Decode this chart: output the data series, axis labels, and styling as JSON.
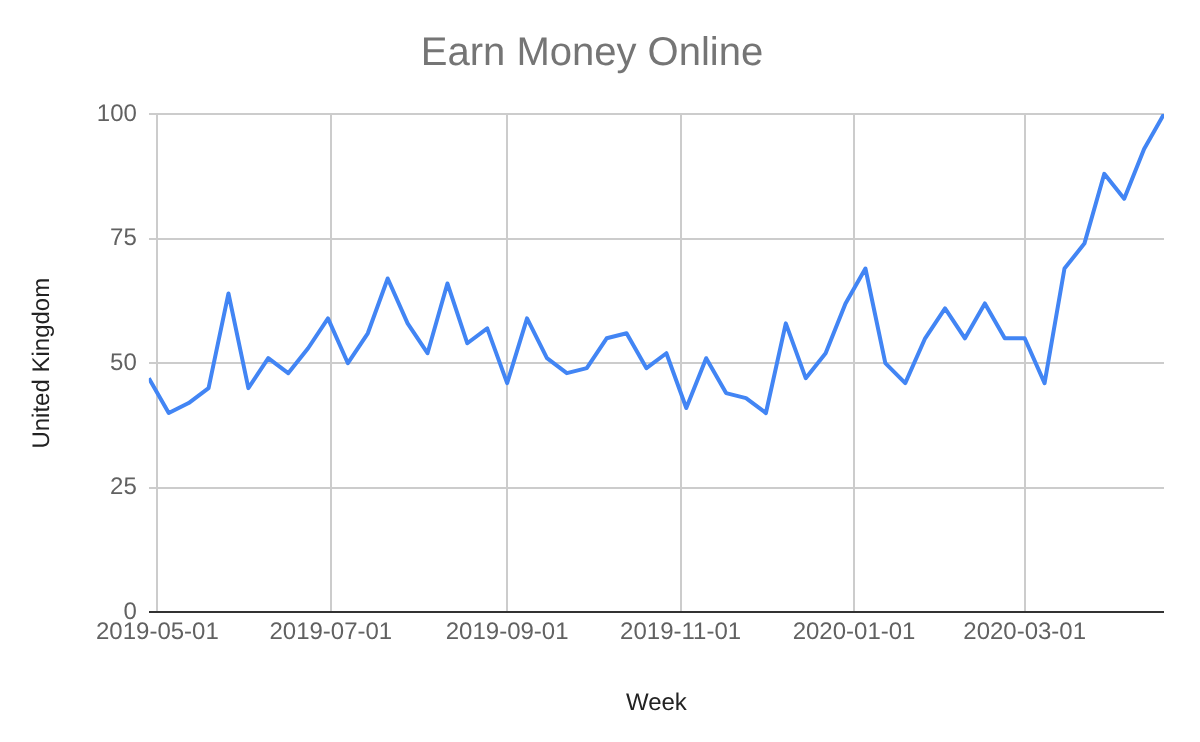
{
  "chart_data": {
    "type": "line",
    "title": "Earn Money Online",
    "xlabel": "Week",
    "ylabel": "United Kingdom",
    "x": [
      "2019-04-28",
      "2019-05-05",
      "2019-05-12",
      "2019-05-19",
      "2019-05-26",
      "2019-06-02",
      "2019-06-09",
      "2019-06-16",
      "2019-06-23",
      "2019-06-30",
      "2019-07-07",
      "2019-07-14",
      "2019-07-21",
      "2019-07-28",
      "2019-08-04",
      "2019-08-11",
      "2019-08-18",
      "2019-08-25",
      "2019-09-01",
      "2019-09-08",
      "2019-09-15",
      "2019-09-22",
      "2019-09-29",
      "2019-10-06",
      "2019-10-13",
      "2019-10-20",
      "2019-10-27",
      "2019-11-03",
      "2019-11-10",
      "2019-11-17",
      "2019-11-24",
      "2019-12-01",
      "2019-12-08",
      "2019-12-15",
      "2019-12-22",
      "2019-12-29",
      "2020-01-05",
      "2020-01-12",
      "2020-01-19",
      "2020-01-26",
      "2020-02-02",
      "2020-02-09",
      "2020-02-16",
      "2020-02-23",
      "2020-03-01",
      "2020-03-08",
      "2020-03-15",
      "2020-03-22",
      "2020-03-29",
      "2020-04-05",
      "2020-04-12",
      "2020-04-19"
    ],
    "series": [
      {
        "color": "#4285f4",
        "values": [
          47,
          40,
          42,
          45,
          64,
          45,
          51,
          48,
          53,
          59,
          50,
          56,
          67,
          58,
          52,
          66,
          54,
          57,
          46,
          59,
          51,
          48,
          49,
          55,
          56,
          49,
          52,
          41,
          51,
          44,
          43,
          40,
          58,
          47,
          52,
          62,
          69,
          50,
          46,
          55,
          61,
          55,
          62,
          55,
          55,
          46,
          69,
          74,
          88,
          83,
          93,
          100
        ]
      }
    ],
    "xlim": [
      "2019-04-28",
      "2020-04-19"
    ],
    "xticks": [
      "2019-05-01",
      "2019-07-01",
      "2019-09-01",
      "2019-11-01",
      "2020-01-01",
      "2020-03-01"
    ],
    "ylim": [
      0,
      100
    ],
    "yticks": [
      0,
      25,
      50,
      75,
      100
    ],
    "grid": true,
    "legend": false,
    "marker": "none",
    "line_style": "solid"
  }
}
